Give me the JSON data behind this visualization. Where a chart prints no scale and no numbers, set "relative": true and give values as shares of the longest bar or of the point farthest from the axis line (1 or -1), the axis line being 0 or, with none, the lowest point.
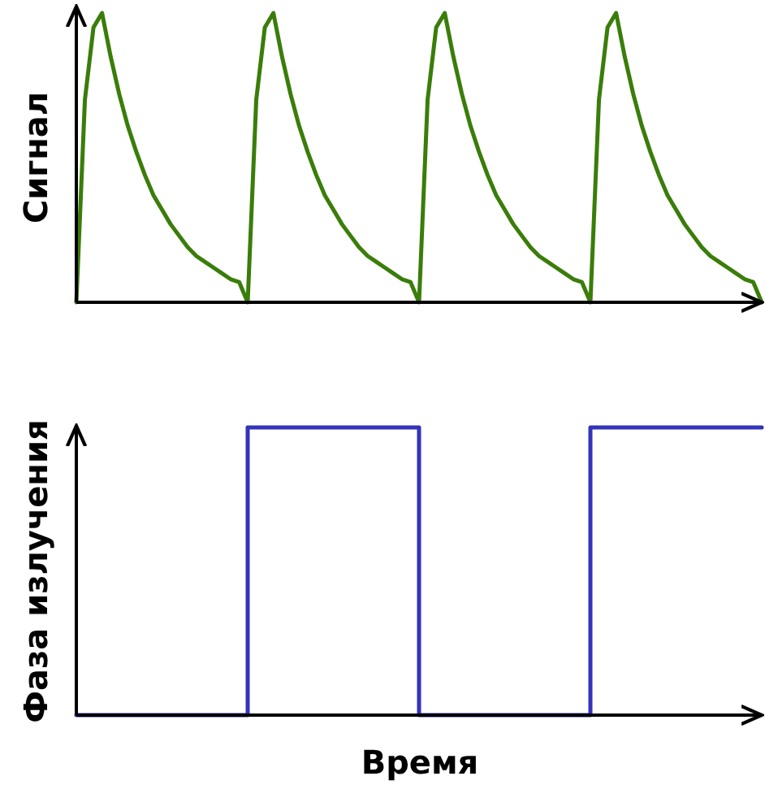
{
  "chart_data": [
    {
      "type": "line",
      "ylabel": "Сигнал",
      "relative": true,
      "tick_labels": false,
      "color": "#3a7d0a",
      "categories": [
        null,
        null,
        null,
        null,
        null,
        null,
        null,
        null,
        null,
        null,
        null,
        null,
        null,
        null,
        null,
        null,
        null,
        null,
        null,
        null,
        null,
        null,
        null,
        null,
        null,
        null,
        null,
        null,
        null,
        null,
        null,
        null,
        null,
        null,
        null,
        null,
        null,
        null,
        null,
        null,
        null,
        null,
        null,
        null,
        null,
        null,
        null,
        null,
        null,
        null,
        null,
        null,
        null,
        null,
        null,
        null,
        null,
        null,
        null,
        null,
        null,
        null,
        null,
        null,
        null,
        null,
        null,
        null,
        null,
        null,
        null,
        null,
        null,
        null,
        null,
        null,
        null,
        null,
        null,
        null,
        null
      ],
      "values": [
        0,
        0.7,
        0.95,
        1,
        0.85,
        0.72,
        0.61,
        0.52,
        0.44,
        0.37,
        0.32,
        0.27,
        0.23,
        0.19,
        0.16,
        0.14,
        0.12,
        0.1,
        0.08,
        0.07,
        0,
        0.7,
        0.95,
        1,
        0.85,
        0.72,
        0.61,
        0.52,
        0.44,
        0.37,
        0.32,
        0.27,
        0.23,
        0.19,
        0.16,
        0.14,
        0.12,
        0.1,
        0.08,
        0.07,
        0,
        0.7,
        0.95,
        1,
        0.85,
        0.72,
        0.61,
        0.52,
        0.44,
        0.37,
        0.32,
        0.27,
        0.23,
        0.19,
        0.16,
        0.14,
        0.12,
        0.1,
        0.08,
        0.07,
        0,
        0.7,
        0.95,
        1,
        0.85,
        0.72,
        0.61,
        0.52,
        0.44,
        0.37,
        0.32,
        0.27,
        0.23,
        0.19,
        0.16,
        0.14,
        0.12,
        0.1,
        0.08,
        0.07,
        0
      ]
    },
    {
      "type": "step",
      "ylabel": "Фаза излучения",
      "xlabel": "Время",
      "relative": true,
      "tick_labels": false,
      "color": "#3333bb",
      "categories": [
        null,
        null,
        null,
        null,
        null
      ],
      "values": [
        0,
        1,
        0,
        1,
        1
      ]
    }
  ]
}
